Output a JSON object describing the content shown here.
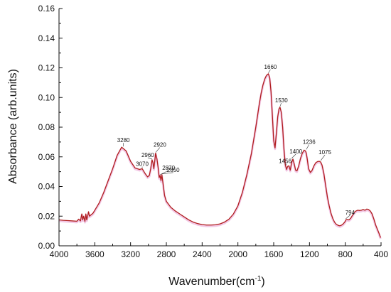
{
  "chart_data": {
    "type": "line",
    "title": "",
    "xlabel": "Wavenumber(cm",
    "xlabel_sup": "-1",
    "xlabel_suffix": ")",
    "ylabel": "Absorbance (arb.units)",
    "xlim": [
      4000,
      400
    ],
    "ylim": [
      0.0,
      0.16
    ],
    "x_reversed": true,
    "grid": false,
    "legend": "none",
    "line_color": "#b01e1e",
    "shadow_color": "#e89ad0",
    "x_ticks": [
      {
        "value": 4000,
        "label": "4000"
      },
      {
        "value": 3600,
        "label": "3600"
      },
      {
        "value": 3200,
        "label": "3200"
      },
      {
        "value": 2800,
        "label": "2800"
      },
      {
        "value": 2400,
        "label": "2400"
      },
      {
        "value": 2000,
        "label": "2000"
      },
      {
        "value": 1600,
        "label": "1600"
      },
      {
        "value": 1200,
        "label": "1200"
      },
      {
        "value": 800,
        "label": "800"
      },
      {
        "value": 400,
        "label": "400"
      }
    ],
    "y_ticks": [
      {
        "value": 0.0,
        "label": "0.00"
      },
      {
        "value": 0.02,
        "label": "0.02"
      },
      {
        "value": 0.04,
        "label": "0.04"
      },
      {
        "value": 0.06,
        "label": "0.06"
      },
      {
        "value": 0.08,
        "label": "0.08"
      },
      {
        "value": 0.1,
        "label": "0.10"
      },
      {
        "value": 0.12,
        "label": "0.12"
      },
      {
        "value": 0.14,
        "label": "0.14"
      },
      {
        "value": 0.16,
        "label": "0.16"
      }
    ],
    "series": [
      {
        "x": [
          4000,
          3950,
          3900,
          3850,
          3800,
          3780,
          3760,
          3745,
          3735,
          3725,
          3710,
          3700,
          3690,
          3680,
          3670,
          3660,
          3640,
          3620,
          3600,
          3550,
          3500,
          3450,
          3400,
          3350,
          3300,
          3250,
          3200,
          3150,
          3100,
          3070,
          3040,
          3010,
          2990,
          2975,
          2960,
          2950,
          2940,
          2930,
          2920,
          2905,
          2890,
          2880,
          2870,
          2860,
          2850,
          2835,
          2820,
          2800,
          2750,
          2700,
          2650,
          2600,
          2550,
          2500,
          2450,
          2400,
          2350,
          2300,
          2250,
          2200,
          2150,
          2100,
          2050,
          2000,
          1950,
          1900,
          1850,
          1800,
          1780,
          1760,
          1740,
          1720,
          1700,
          1680,
          1660,
          1645,
          1630,
          1615,
          1600,
          1585,
          1570,
          1555,
          1540,
          1530,
          1515,
          1500,
          1485,
          1470,
          1456,
          1445,
          1430,
          1415,
          1400,
          1385,
          1370,
          1355,
          1340,
          1320,
          1300,
          1280,
          1260,
          1245,
          1236,
          1225,
          1210,
          1190,
          1170,
          1150,
          1130,
          1110,
          1090,
          1075,
          1060,
          1040,
          1020,
          1000,
          980,
          960,
          940,
          920,
          900,
          880,
          860,
          840,
          820,
          800,
          794,
          780,
          760,
          740,
          720,
          700,
          680,
          660,
          640,
          620,
          600,
          580,
          560,
          540,
          520,
          500,
          480,
          460,
          440,
          420,
          405
        ],
        "values": [
          0.0175,
          0.0172,
          0.017,
          0.0168,
          0.0166,
          0.018,
          0.0168,
          0.0215,
          0.0175,
          0.02,
          0.0165,
          0.0215,
          0.0175,
          0.02,
          0.023,
          0.02,
          0.021,
          0.022,
          0.024,
          0.029,
          0.036,
          0.044,
          0.052,
          0.061,
          0.0665,
          0.064,
          0.057,
          0.0525,
          0.0515,
          0.052,
          0.049,
          0.0465,
          0.0475,
          0.052,
          0.058,
          0.056,
          0.052,
          0.057,
          0.0625,
          0.0585,
          0.052,
          0.046,
          0.0475,
          0.044,
          0.048,
          0.041,
          0.034,
          0.03,
          0.026,
          0.0235,
          0.0215,
          0.0195,
          0.0175,
          0.016,
          0.015,
          0.0143,
          0.014,
          0.014,
          0.0142,
          0.0148,
          0.016,
          0.018,
          0.0215,
          0.027,
          0.036,
          0.048,
          0.062,
          0.08,
          0.088,
          0.096,
          0.103,
          0.1085,
          0.1125,
          0.115,
          0.116,
          0.1135,
          0.104,
          0.088,
          0.071,
          0.066,
          0.076,
          0.087,
          0.0925,
          0.0935,
          0.09,
          0.08,
          0.065,
          0.0545,
          0.0515,
          0.0535,
          0.054,
          0.051,
          0.056,
          0.0585,
          0.055,
          0.051,
          0.0505,
          0.054,
          0.059,
          0.0625,
          0.0645,
          0.064,
          0.0625,
          0.0585,
          0.052,
          0.0495,
          0.051,
          0.054,
          0.056,
          0.0568,
          0.057,
          0.0565,
          0.0545,
          0.049,
          0.041,
          0.033,
          0.027,
          0.022,
          0.0185,
          0.016,
          0.0145,
          0.0138,
          0.0135,
          0.014,
          0.015,
          0.0165,
          0.0175,
          0.0178,
          0.0175,
          0.0185,
          0.0205,
          0.0225,
          0.0235,
          0.024,
          0.0238,
          0.024,
          0.0245,
          0.024,
          0.0248,
          0.0245,
          0.0235,
          0.0215,
          0.018,
          0.014,
          0.011,
          0.008,
          0.0055
        ]
      }
    ],
    "annotations": [
      {
        "label": "3280",
        "x": 3280,
        "y": 0.0665,
        "dx": 0,
        "dy": -7
      },
      {
        "label": "3070",
        "x": 3070,
        "y": 0.052,
        "dx": 0,
        "dy": -4
      },
      {
        "label": "2960",
        "x": 2960,
        "y": 0.058,
        "dx": -6,
        "dy": -4
      },
      {
        "label": "2920",
        "x": 2920,
        "y": 0.0625,
        "dx": 6,
        "dy": -9
      },
      {
        "label": "2870",
        "x": 2870,
        "y": 0.0475,
        "dx": 12,
        "dy": -8
      },
      {
        "label": "2850",
        "x": 2850,
        "y": 0.048,
        "dx": 16,
        "dy": -4
      },
      {
        "label": "1660",
        "x": 1660,
        "y": 0.116,
        "dx": 3,
        "dy": -7
      },
      {
        "label": "1530",
        "x": 1530,
        "y": 0.0935,
        "dx": 2,
        "dy": -7
      },
      {
        "label": "1456",
        "x": 1456,
        "y": 0.054,
        "dx": -2,
        "dy": -4
      },
      {
        "label": "1400",
        "x": 1400,
        "y": 0.0585,
        "dx": 6,
        "dy": -8
      },
      {
        "label": "1236",
        "x": 1236,
        "y": 0.0645,
        "dx": 4,
        "dy": -9
      },
      {
        "label": "1075",
        "x": 1075,
        "y": 0.057,
        "dx": 6,
        "dy": -10
      },
      {
        "label": "794",
        "x": 794,
        "y": 0.0178,
        "dx": 6,
        "dy": -7
      }
    ]
  }
}
